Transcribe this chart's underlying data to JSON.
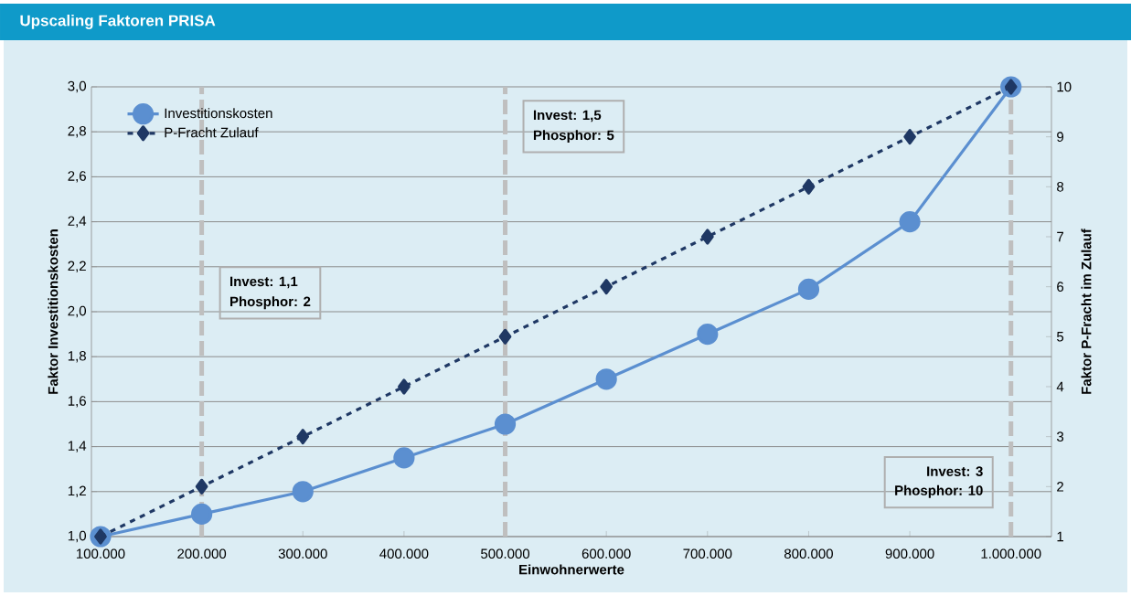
{
  "chart_data": {
    "type": "line",
    "title": "Upscaling Faktoren PRISA",
    "xlabel": "Einwohnerwerte",
    "ylabel": "Faktor Investitionskosten",
    "y2label": "Faktor P-Fracht im Zulauf",
    "x": [
      100000,
      200000,
      300000,
      400000,
      500000,
      600000,
      700000,
      800000,
      900000,
      1000000
    ],
    "series": [
      {
        "name": "Investitionskosten",
        "color": "#5b8fd0",
        "marker": "circle",
        "line_style": "solid",
        "values": [
          1.0,
          1.1,
          1.2,
          1.35,
          1.5,
          1.7,
          1.9,
          2.1,
          2.4,
          3.0
        ]
      },
      {
        "name": "P-Fracht Zulauf",
        "color": "#1f3864",
        "marker": "diamond",
        "line_style": "dashed",
        "axis": "y2",
        "values": [
          1,
          2,
          3,
          4,
          5,
          6,
          7,
          8,
          9,
          10
        ]
      }
    ],
    "xlim": [
      91000,
      1040000
    ],
    "xticks": [
      {
        "value": 100000,
        "label": "100.000"
      },
      {
        "value": 200000,
        "label": "200.000"
      },
      {
        "value": 300000,
        "label": "300.000"
      },
      {
        "value": 400000,
        "label": "400.000"
      },
      {
        "value": 500000,
        "label": "500.000"
      },
      {
        "value": 600000,
        "label": "600.000"
      },
      {
        "value": 700000,
        "label": "700.000"
      },
      {
        "value": 800000,
        "label": "800.000"
      },
      {
        "value": 900000,
        "label": "900.000"
      },
      {
        "value": 1000000,
        "label": "1.000.000"
      }
    ],
    "ylim": [
      1.0,
      3.0
    ],
    "yticks": [
      {
        "value": 1.0,
        "label": "1,0"
      },
      {
        "value": 1.2,
        "label": "1,2"
      },
      {
        "value": 1.4,
        "label": "1,4"
      },
      {
        "value": 1.6,
        "label": "1,6"
      },
      {
        "value": 1.8,
        "label": "1,8"
      },
      {
        "value": 2.0,
        "label": "2,0"
      },
      {
        "value": 2.2,
        "label": "2,2"
      },
      {
        "value": 2.4,
        "label": "2,4"
      },
      {
        "value": 2.6,
        "label": "2,6"
      },
      {
        "value": 2.8,
        "label": "2,8"
      },
      {
        "value": 3.0,
        "label": "3,0"
      }
    ],
    "y2lim": [
      1,
      10
    ],
    "y2ticks": [
      1,
      2,
      3,
      4,
      5,
      6,
      7,
      8,
      9,
      10
    ],
    "ref_lines": [
      {
        "axis": "x",
        "value": 200000,
        "color": "#bfbfbf",
        "line_style": "dashed"
      },
      {
        "axis": "x",
        "value": 500000,
        "color": "#bfbfbf",
        "line_style": "dashed"
      },
      {
        "axis": "x",
        "value": 1000000,
        "color": "#bfbfbf",
        "line_style": "dashed"
      }
    ],
    "annotations": [
      {
        "text": "Invest: 1,1",
        "x": 200000,
        "y": 2.13
      },
      {
        "text": "Phosphor: 2",
        "x": 200000,
        "y": 2.04
      },
      {
        "text": "Invest: 1,5",
        "x": 500000,
        "y": 2.87
      },
      {
        "text": "Phosphor: 5",
        "x": 500000,
        "y": 2.78
      },
      {
        "text": "Invest: 3",
        "x": 1000000,
        "y": 1.29
      },
      {
        "text": "Phosphor: 10",
        "x": 1000000,
        "y": 1.2
      }
    ],
    "grid": "y",
    "legend": "top left"
  }
}
